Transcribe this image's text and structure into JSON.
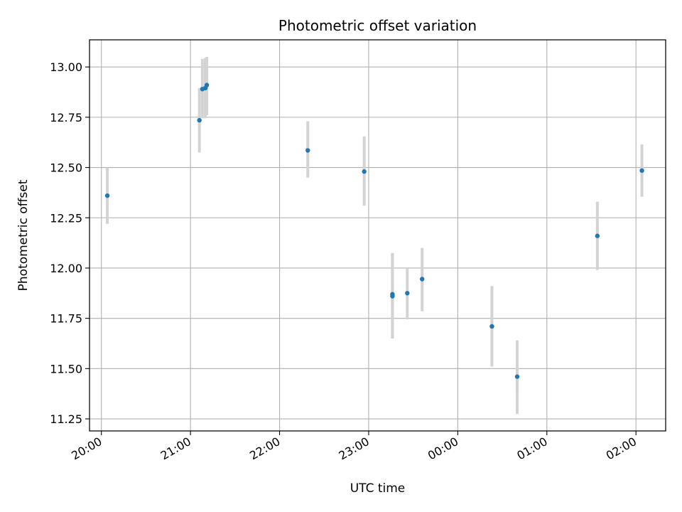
{
  "chart_data": {
    "type": "scatter",
    "title": "Photometric offset variation",
    "xlabel": "UTC time",
    "ylabel": "Photometric offset",
    "x_type": "time",
    "x_range": [
      "19:52",
      "02:20"
    ],
    "x_ticks": [
      "20:00",
      "21:00",
      "22:00",
      "23:00",
      "00:00",
      "01:00",
      "02:00"
    ],
    "ylim": [
      11.19,
      13.135
    ],
    "y_ticks": [
      "11.25",
      "11.50",
      "11.75",
      "12.00",
      "12.25",
      "12.50",
      "12.75",
      "13.00"
    ],
    "grid": true,
    "points": [
      {
        "x": "20:04",
        "y": 12.36,
        "err_low": 12.22,
        "err_high": 12.5
      },
      {
        "x": "21:06",
        "y": 12.735,
        "err_low": 12.575,
        "err_high": 12.895
      },
      {
        "x": "21:08",
        "y": 12.89,
        "err_low": 12.745,
        "err_high": 13.04
      },
      {
        "x": "21:10",
        "y": 12.895,
        "err_low": 12.745,
        "err_high": 13.045
      },
      {
        "x": "21:11",
        "y": 12.91,
        "err_low": 12.76,
        "err_high": 13.05
      },
      {
        "x": "22:19",
        "y": 12.585,
        "err_low": 12.45,
        "err_high": 12.73
      },
      {
        "x": "22:57",
        "y": 12.48,
        "err_low": 12.31,
        "err_high": 12.655
      },
      {
        "x": "23:16",
        "y": 11.87,
        "err_low": 11.65,
        "err_high": 12.075
      },
      {
        "x": "23:16",
        "y": 11.86,
        "err_low": 11.65,
        "err_high": 12.07
      },
      {
        "x": "23:26",
        "y": 11.875,
        "err_low": 11.745,
        "err_high": 12.0
      },
      {
        "x": "23:36",
        "y": 11.945,
        "err_low": 11.785,
        "err_high": 12.1
      },
      {
        "x": "00:23",
        "y": 11.71,
        "err_low": 11.51,
        "err_high": 11.91
      },
      {
        "x": "00:40",
        "y": 11.46,
        "err_low": 11.275,
        "err_high": 11.64
      },
      {
        "x": "01:34",
        "y": 12.16,
        "err_low": 11.99,
        "err_high": 12.33
      },
      {
        "x": "02:04",
        "y": 12.485,
        "err_low": 12.355,
        "err_high": 12.615
      }
    ],
    "colors": {
      "marker": "#1f77b4",
      "errorbar": "#d3d3d3",
      "grid": "#b0b0b0"
    }
  }
}
